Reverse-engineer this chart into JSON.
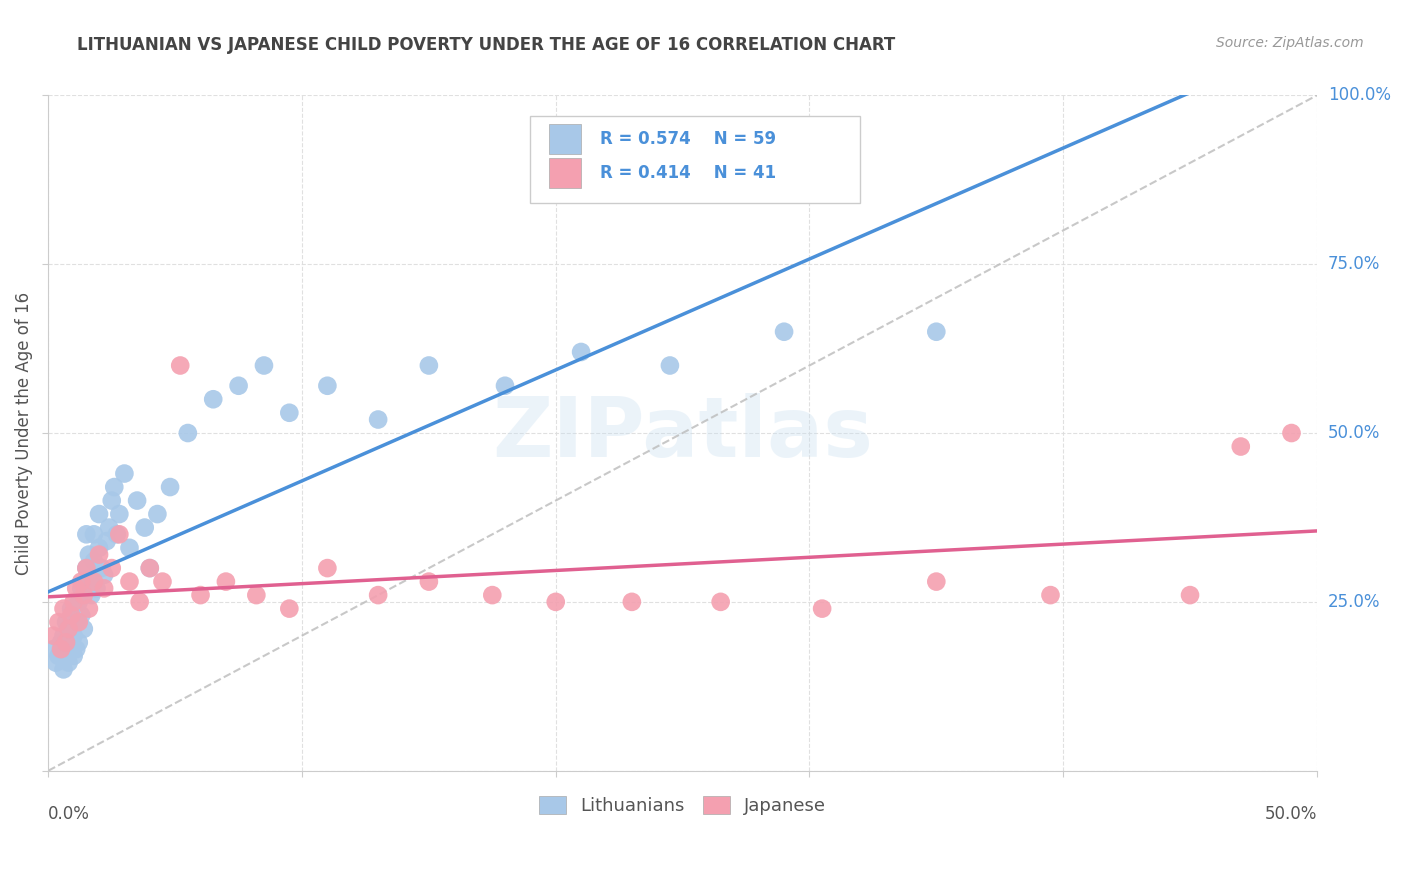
{
  "title": "LITHUANIAN VS JAPANESE CHILD POVERTY UNDER THE AGE OF 16 CORRELATION CHART",
  "source": "Source: ZipAtlas.com",
  "ylabel": "Child Poverty Under the Age of 16",
  "ylim": [
    0,
    1.0
  ],
  "xlim": [
    0,
    0.5
  ],
  "yticks": [
    0.0,
    0.25,
    0.5,
    0.75,
    1.0
  ],
  "ytick_labels": [
    "",
    "25.0%",
    "50.0%",
    "75.0%",
    "100.0%"
  ],
  "xticks": [
    0,
    0.1,
    0.2,
    0.3,
    0.4,
    0.5
  ],
  "blue_color": "#a8c8e8",
  "pink_color": "#f4a0b0",
  "blue_line_color": "#4a90d9",
  "pink_line_color": "#e06090",
  "diag_color": "#bbbbbb",
  "watermark": "ZIPatlas",
  "blue_scatter_x": [
    0.002,
    0.003,
    0.004,
    0.005,
    0.006,
    0.006,
    0.007,
    0.007,
    0.008,
    0.008,
    0.009,
    0.009,
    0.01,
    0.01,
    0.011,
    0.011,
    0.012,
    0.012,
    0.013,
    0.013,
    0.014,
    0.015,
    0.015,
    0.016,
    0.016,
    0.017,
    0.018,
    0.018,
    0.019,
    0.02,
    0.02,
    0.021,
    0.022,
    0.023,
    0.024,
    0.025,
    0.026,
    0.027,
    0.028,
    0.03,
    0.032,
    0.035,
    0.038,
    0.04,
    0.043,
    0.048,
    0.055,
    0.065,
    0.075,
    0.085,
    0.095,
    0.11,
    0.13,
    0.15,
    0.18,
    0.21,
    0.245,
    0.29,
    0.35
  ],
  "blue_scatter_y": [
    0.18,
    0.16,
    0.17,
    0.19,
    0.2,
    0.15,
    0.18,
    0.22,
    0.16,
    0.21,
    0.19,
    0.24,
    0.17,
    0.2,
    0.22,
    0.18,
    0.25,
    0.19,
    0.23,
    0.27,
    0.21,
    0.3,
    0.35,
    0.28,
    0.32,
    0.26,
    0.31,
    0.35,
    0.27,
    0.33,
    0.38,
    0.3,
    0.29,
    0.34,
    0.36,
    0.4,
    0.42,
    0.35,
    0.38,
    0.44,
    0.33,
    0.4,
    0.36,
    0.3,
    0.38,
    0.42,
    0.5,
    0.55,
    0.57,
    0.6,
    0.53,
    0.57,
    0.52,
    0.6,
    0.57,
    0.62,
    0.6,
    0.65,
    0.65
  ],
  "pink_scatter_x": [
    0.002,
    0.004,
    0.005,
    0.006,
    0.007,
    0.008,
    0.009,
    0.01,
    0.011,
    0.012,
    0.013,
    0.014,
    0.015,
    0.016,
    0.018,
    0.02,
    0.022,
    0.025,
    0.028,
    0.032,
    0.036,
    0.04,
    0.045,
    0.052,
    0.06,
    0.07,
    0.082,
    0.095,
    0.11,
    0.13,
    0.15,
    0.175,
    0.2,
    0.23,
    0.265,
    0.305,
    0.35,
    0.395,
    0.45,
    0.47,
    0.49
  ],
  "pink_scatter_y": [
    0.2,
    0.22,
    0.18,
    0.24,
    0.19,
    0.21,
    0.23,
    0.25,
    0.27,
    0.22,
    0.28,
    0.26,
    0.3,
    0.24,
    0.28,
    0.32,
    0.27,
    0.3,
    0.35,
    0.28,
    0.25,
    0.3,
    0.28,
    0.6,
    0.26,
    0.28,
    0.26,
    0.24,
    0.3,
    0.26,
    0.28,
    0.26,
    0.25,
    0.25,
    0.25,
    0.24,
    0.28,
    0.26,
    0.26,
    0.48,
    0.5
  ]
}
